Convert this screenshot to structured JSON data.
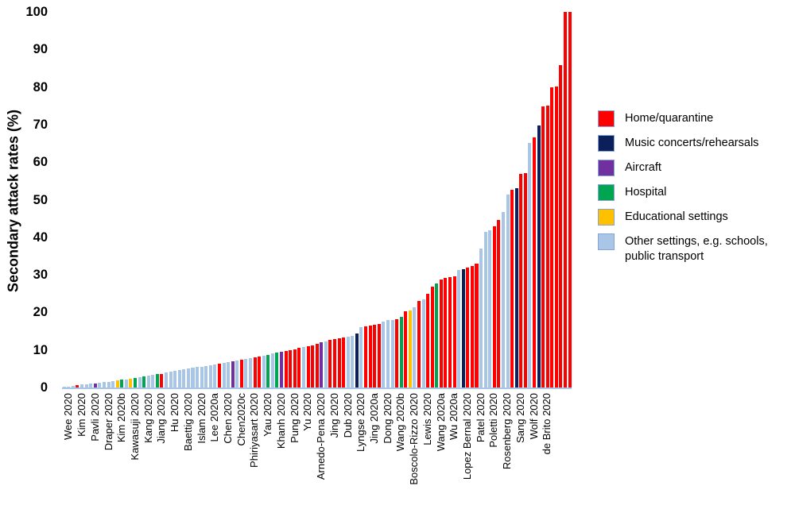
{
  "y_axis": {
    "label": "Secondary attack rates (%)",
    "ticks": [
      0,
      10,
      20,
      30,
      40,
      50,
      60,
      70,
      80,
      90,
      100
    ]
  },
  "axis_line_color": "#a9c6e7",
  "legend": {
    "items": [
      {
        "key": "home",
        "label": "Home/quarantine",
        "color": "#fe0000"
      },
      {
        "key": "music",
        "label": "Music concerts/rehearsals",
        "color": "#0b1f5b"
      },
      {
        "key": "aircraft",
        "label": "Aircraft",
        "color": "#7030a0"
      },
      {
        "key": "hospital",
        "label": "Hospital",
        "color": "#00a551"
      },
      {
        "key": "education",
        "label": "Educational settings",
        "color": "#ffc000"
      },
      {
        "key": "other",
        "label": "Other settings, e.g. schools, public transport",
        "color": "#a9c6e7"
      }
    ]
  },
  "chart_data": {
    "type": "bar",
    "title": "",
    "xlabel": "",
    "ylabel": "Secondary attack rates (%)",
    "ylim": [
      0,
      100
    ],
    "grid": false,
    "legend_position": "right",
    "sort": "ascending",
    "category_colors": {
      "home": "#fe0000",
      "music": "#0b1f5b",
      "aircraft": "#7030a0",
      "hospital": "#00a551",
      "education": "#ffc000",
      "other": "#a9c6e7"
    },
    "x_tick_labels": [
      "Wee 2020",
      "Kim 2020",
      "Pavli 2020",
      "Draper 2020",
      "Kim 2020b",
      "Kawasuji 2020",
      "Kang 2020",
      "Jiang 2020",
      "Hu 2020",
      "Baettig 2020",
      "Islam 2020",
      "Lee 2020a",
      "Chen 2020",
      "Chen2020c",
      "Phiriyasart 2020",
      "Yau 2020",
      "Khanh 2020",
      "Pung 2020",
      "Yu 2020",
      "Arnedo-Pena 2020",
      "Jing 2020",
      "Dub 2020",
      "Lyngse 2020",
      "Jing 2020a",
      "Dong 2020",
      "Wang 2020b",
      "Boscolo-Rizzo 2020",
      "Lewis 2020",
      "Wang 2020a",
      "Wu 2020a",
      "Lopez Bernal 2020",
      "Patel 2020",
      "Poletti 2020",
      "Rosenberg 2020",
      "Sang 2020",
      "Wolf 2020",
      "de Brito 2020"
    ],
    "label_start_index": 1,
    "label_step": 3,
    "values": [
      0.2,
      0.3,
      0.4,
      0.7,
      0.8,
      0.9,
      1.0,
      1.1,
      1.2,
      1.4,
      1.5,
      1.7,
      2.0,
      2.1,
      2.2,
      2.3,
      2.5,
      2.7,
      2.9,
      3.1,
      3.3,
      3.5,
      3.7,
      4.0,
      4.2,
      4.4,
      4.6,
      4.8,
      5.0,
      5.2,
      5.4,
      5.6,
      5.8,
      6.0,
      6.2,
      6.4,
      6.6,
      6.8,
      7.0,
      7.2,
      7.4,
      7.6,
      7.8,
      8.0,
      8.3,
      8.5,
      8.7,
      9.0,
      9.2,
      9.5,
      9.7,
      10.0,
      10.2,
      10.5,
      10.8,
      11.0,
      11.3,
      11.6,
      12.0,
      12.3,
      12.6,
      12.9,
      13.1,
      13.3,
      13.5,
      13.8,
      14.4,
      16.0,
      16.3,
      16.5,
      16.7,
      17.0,
      17.5,
      17.9,
      18.0,
      18.2,
      18.8,
      20.4,
      20.6,
      21.3,
      23.0,
      23.5,
      24.9,
      26.8,
      27.7,
      28.8,
      29.2,
      29.4,
      29.6,
      31.3,
      31.6,
      32.0,
      32.4,
      33.0,
      36.9,
      41.5,
      41.8,
      42.9,
      44.6,
      46.8,
      51.3,
      52.7,
      53.1,
      56.8,
      57.0,
      65.2,
      66.6,
      69.8,
      74.8,
      75.1,
      79.9,
      80.1,
      85.9,
      100,
      100
    ],
    "bar_categories": [
      "other",
      "other",
      "other",
      "home",
      "other",
      "other",
      "other",
      "aircraft",
      "other",
      "other",
      "other",
      "other",
      "education",
      "hospital",
      "other",
      "education",
      "hospital",
      "other",
      "hospital",
      "other",
      "other",
      "hospital",
      "home",
      "other",
      "other",
      "other",
      "other",
      "other",
      "other",
      "other",
      "other",
      "other",
      "other",
      "other",
      "other",
      "home",
      "other",
      "other",
      "aircraft",
      "other",
      "home",
      "other",
      "other",
      "home",
      "home",
      "other",
      "hospital",
      "other",
      "hospital",
      "aircraft",
      "home",
      "home",
      "home",
      "home",
      "other",
      "home",
      "home",
      "home",
      "aircraft",
      "other",
      "home",
      "home",
      "home",
      "home",
      "other",
      "other",
      "music",
      "other",
      "home",
      "home",
      "home",
      "home",
      "other",
      "other",
      "other",
      "home",
      "hospital",
      "home",
      "education",
      "other",
      "home",
      "other",
      "home",
      "home",
      "hospital",
      "home",
      "home",
      "home",
      "home",
      "other",
      "music",
      "home",
      "home",
      "home",
      "other",
      "other",
      "other",
      "home",
      "home",
      "other",
      "other",
      "home",
      "music",
      "home",
      "home",
      "other",
      "home",
      "music",
      "home",
      "home",
      "home",
      "home",
      "home",
      "home",
      "home"
    ]
  }
}
